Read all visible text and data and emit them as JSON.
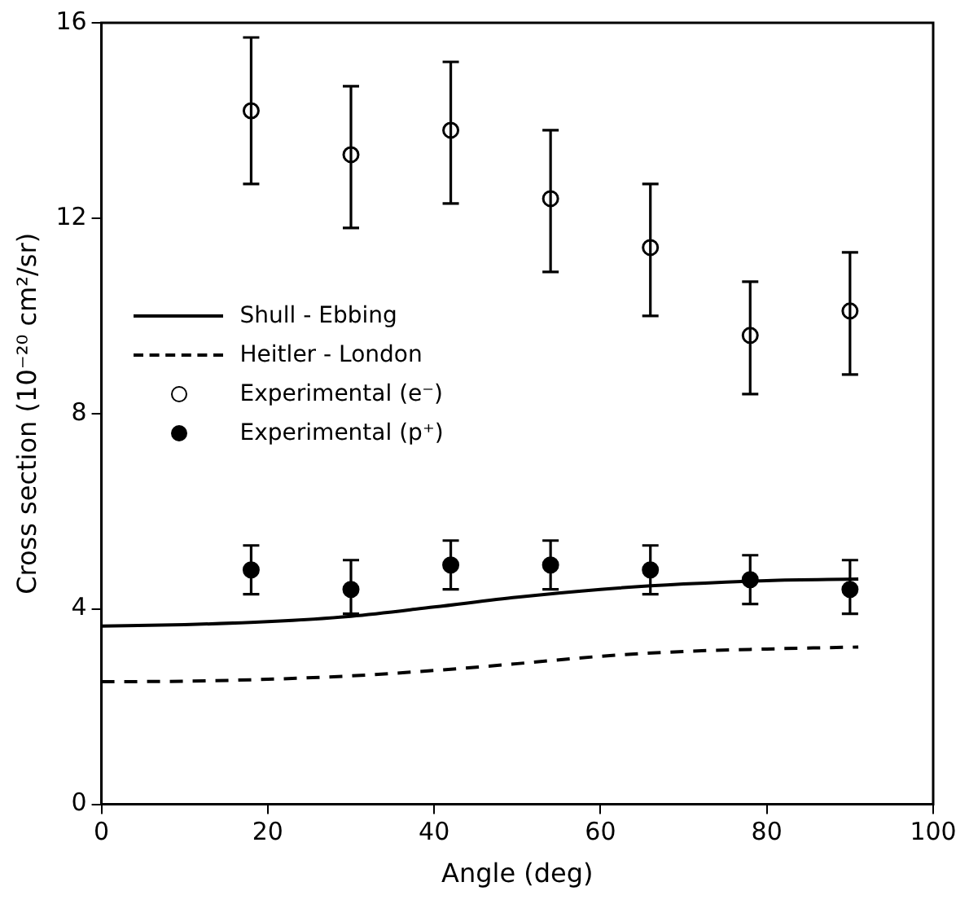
{
  "chart_data": {
    "type": "scatter",
    "xlabel": "Angle (deg)",
    "ylabel": "Cross section (10⁻²⁰ cm²/sr)",
    "xlim": [
      0,
      100
    ],
    "xticks": [
      0,
      20,
      40,
      60,
      80,
      100
    ],
    "ylim": [
      0,
      16
    ],
    "yticks": [
      0,
      4,
      8,
      12,
      16
    ],
    "grid": false,
    "legend": "left",
    "series": [
      {
        "name": "Shull - Ebbing",
        "type": "line",
        "marker": "none",
        "line_style": "solid",
        "color": "#000000",
        "x": [
          0,
          10,
          20,
          30,
          40,
          50,
          60,
          70,
          80,
          91
        ],
        "values": [
          3.65,
          3.68,
          3.74,
          3.85,
          4.04,
          4.24,
          4.4,
          4.51,
          4.58,
          4.61
        ]
      },
      {
        "name": "Heitler - London",
        "type": "line",
        "marker": "none",
        "line_style": "dashed",
        "color": "#000000",
        "x": [
          0,
          10,
          20,
          30,
          40,
          50,
          60,
          70,
          80,
          91
        ],
        "values": [
          2.51,
          2.52,
          2.56,
          2.63,
          2.74,
          2.88,
          3.03,
          3.13,
          3.18,
          3.22
        ]
      },
      {
        "name": "Experimental (e⁻)",
        "type": "scatter",
        "marker": "circle",
        "color": "#ffffff",
        "x": [
          18,
          30,
          42,
          54,
          66,
          78,
          90
        ],
        "values": [
          14.2,
          13.3,
          13.8,
          12.4,
          11.4,
          9.6,
          10.1
        ],
        "errors": [
          [
            12.7,
            15.7
          ],
          [
            11.8,
            14.7
          ],
          [
            12.3,
            15.2
          ],
          [
            10.9,
            13.8
          ],
          [
            10.0,
            12.7
          ],
          [
            8.4,
            10.7
          ],
          [
            8.8,
            11.3
          ]
        ]
      },
      {
        "name": "Experimental (p⁺)",
        "type": "scatter",
        "marker": "circle",
        "color": "#000000",
        "x": [
          18,
          30,
          42,
          54,
          66,
          78,
          90
        ],
        "values": [
          4.8,
          4.4,
          4.9,
          4.9,
          4.8,
          4.6,
          4.4
        ],
        "errors": [
          [
            4.3,
            5.3
          ],
          [
            3.9,
            5.0
          ],
          [
            4.4,
            5.4
          ],
          [
            4.4,
            5.4
          ],
          [
            4.3,
            5.3
          ],
          [
            4.1,
            5.1
          ],
          [
            3.9,
            5.0
          ]
        ]
      }
    ]
  }
}
